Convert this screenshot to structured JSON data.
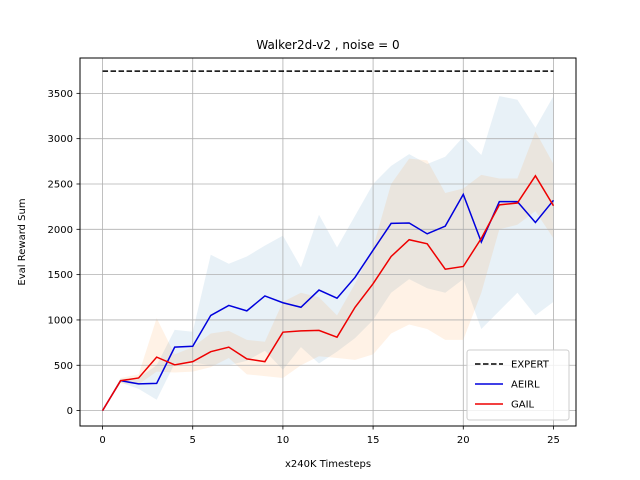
{
  "chart_data": {
    "type": "line",
    "title": "Walker2d-v2 , noise = 0",
    "xlabel": "x240K Timesteps",
    "ylabel": "Eval Reward Sum",
    "xlim": [
      -1.25,
      26.25
    ],
    "ylim": [
      -170,
      3890
    ],
    "xticks": [
      0,
      5,
      10,
      15,
      20,
      25
    ],
    "yticks": [
      0,
      500,
      1000,
      1500,
      2000,
      2500,
      3000,
      3500
    ],
    "grid": true,
    "legend_position": "lower-right",
    "x": [
      0,
      1,
      2,
      3,
      4,
      5,
      6,
      7,
      8,
      9,
      10,
      11,
      12,
      13,
      14,
      15,
      16,
      17,
      18,
      19,
      20,
      21,
      22,
      23,
      24,
      25
    ],
    "series": [
      {
        "name": "EXPERT",
        "style": "dashed",
        "color": "#000000",
        "x": [
          0,
          25
        ],
        "values": [
          3745,
          3745
        ]
      },
      {
        "name": "AEIRL",
        "color": "#0000dd",
        "band_color": "#1f77b4",
        "values": [
          0,
          330,
          295,
          300,
          700,
          710,
          1050,
          1160,
          1100,
          1265,
          1190,
          1140,
          1330,
          1240,
          1470,
          1770,
          2065,
          2070,
          1950,
          2035,
          2385,
          1860,
          2305,
          2305,
          2075,
          2320
        ],
        "lower": [
          0,
          310,
          240,
          120,
          520,
          530,
          500,
          500,
          550,
          660,
          450,
          700,
          520,
          650,
          800,
          1000,
          1300,
          1450,
          1350,
          1300,
          1450,
          900,
          1100,
          1300,
          1050,
          1200
        ],
        "upper": [
          0,
          350,
          360,
          500,
          890,
          870,
          1720,
          1620,
          1700,
          1820,
          1930,
          1580,
          2160,
          1800,
          2150,
          2500,
          2700,
          2830,
          2720,
          2800,
          3020,
          2820,
          3470,
          3430,
          3120,
          3470
        ]
      },
      {
        "name": "GAIL",
        "color": "#ee0000",
        "band_color": "#ff7f0e",
        "values": [
          0,
          330,
          360,
          590,
          505,
          540,
          650,
          700,
          570,
          540,
          865,
          880,
          885,
          810,
          1140,
          1400,
          1700,
          1885,
          1840,
          1560,
          1590,
          1900,
          2270,
          2290,
          2590,
          2260
        ],
        "lower": [
          0,
          300,
          290,
          430,
          420,
          430,
          480,
          580,
          400,
          380,
          360,
          500,
          600,
          580,
          560,
          620,
          850,
          950,
          900,
          780,
          780,
          1300,
          2000,
          2050,
          2200,
          1900
        ],
        "upper": [
          0,
          360,
          400,
          1020,
          620,
          700,
          850,
          880,
          780,
          760,
          1200,
          1300,
          1250,
          1050,
          1400,
          1800,
          2500,
          2780,
          2760,
          2400,
          2450,
          2600,
          2560,
          2560,
          3080,
          2720
        ]
      }
    ]
  }
}
